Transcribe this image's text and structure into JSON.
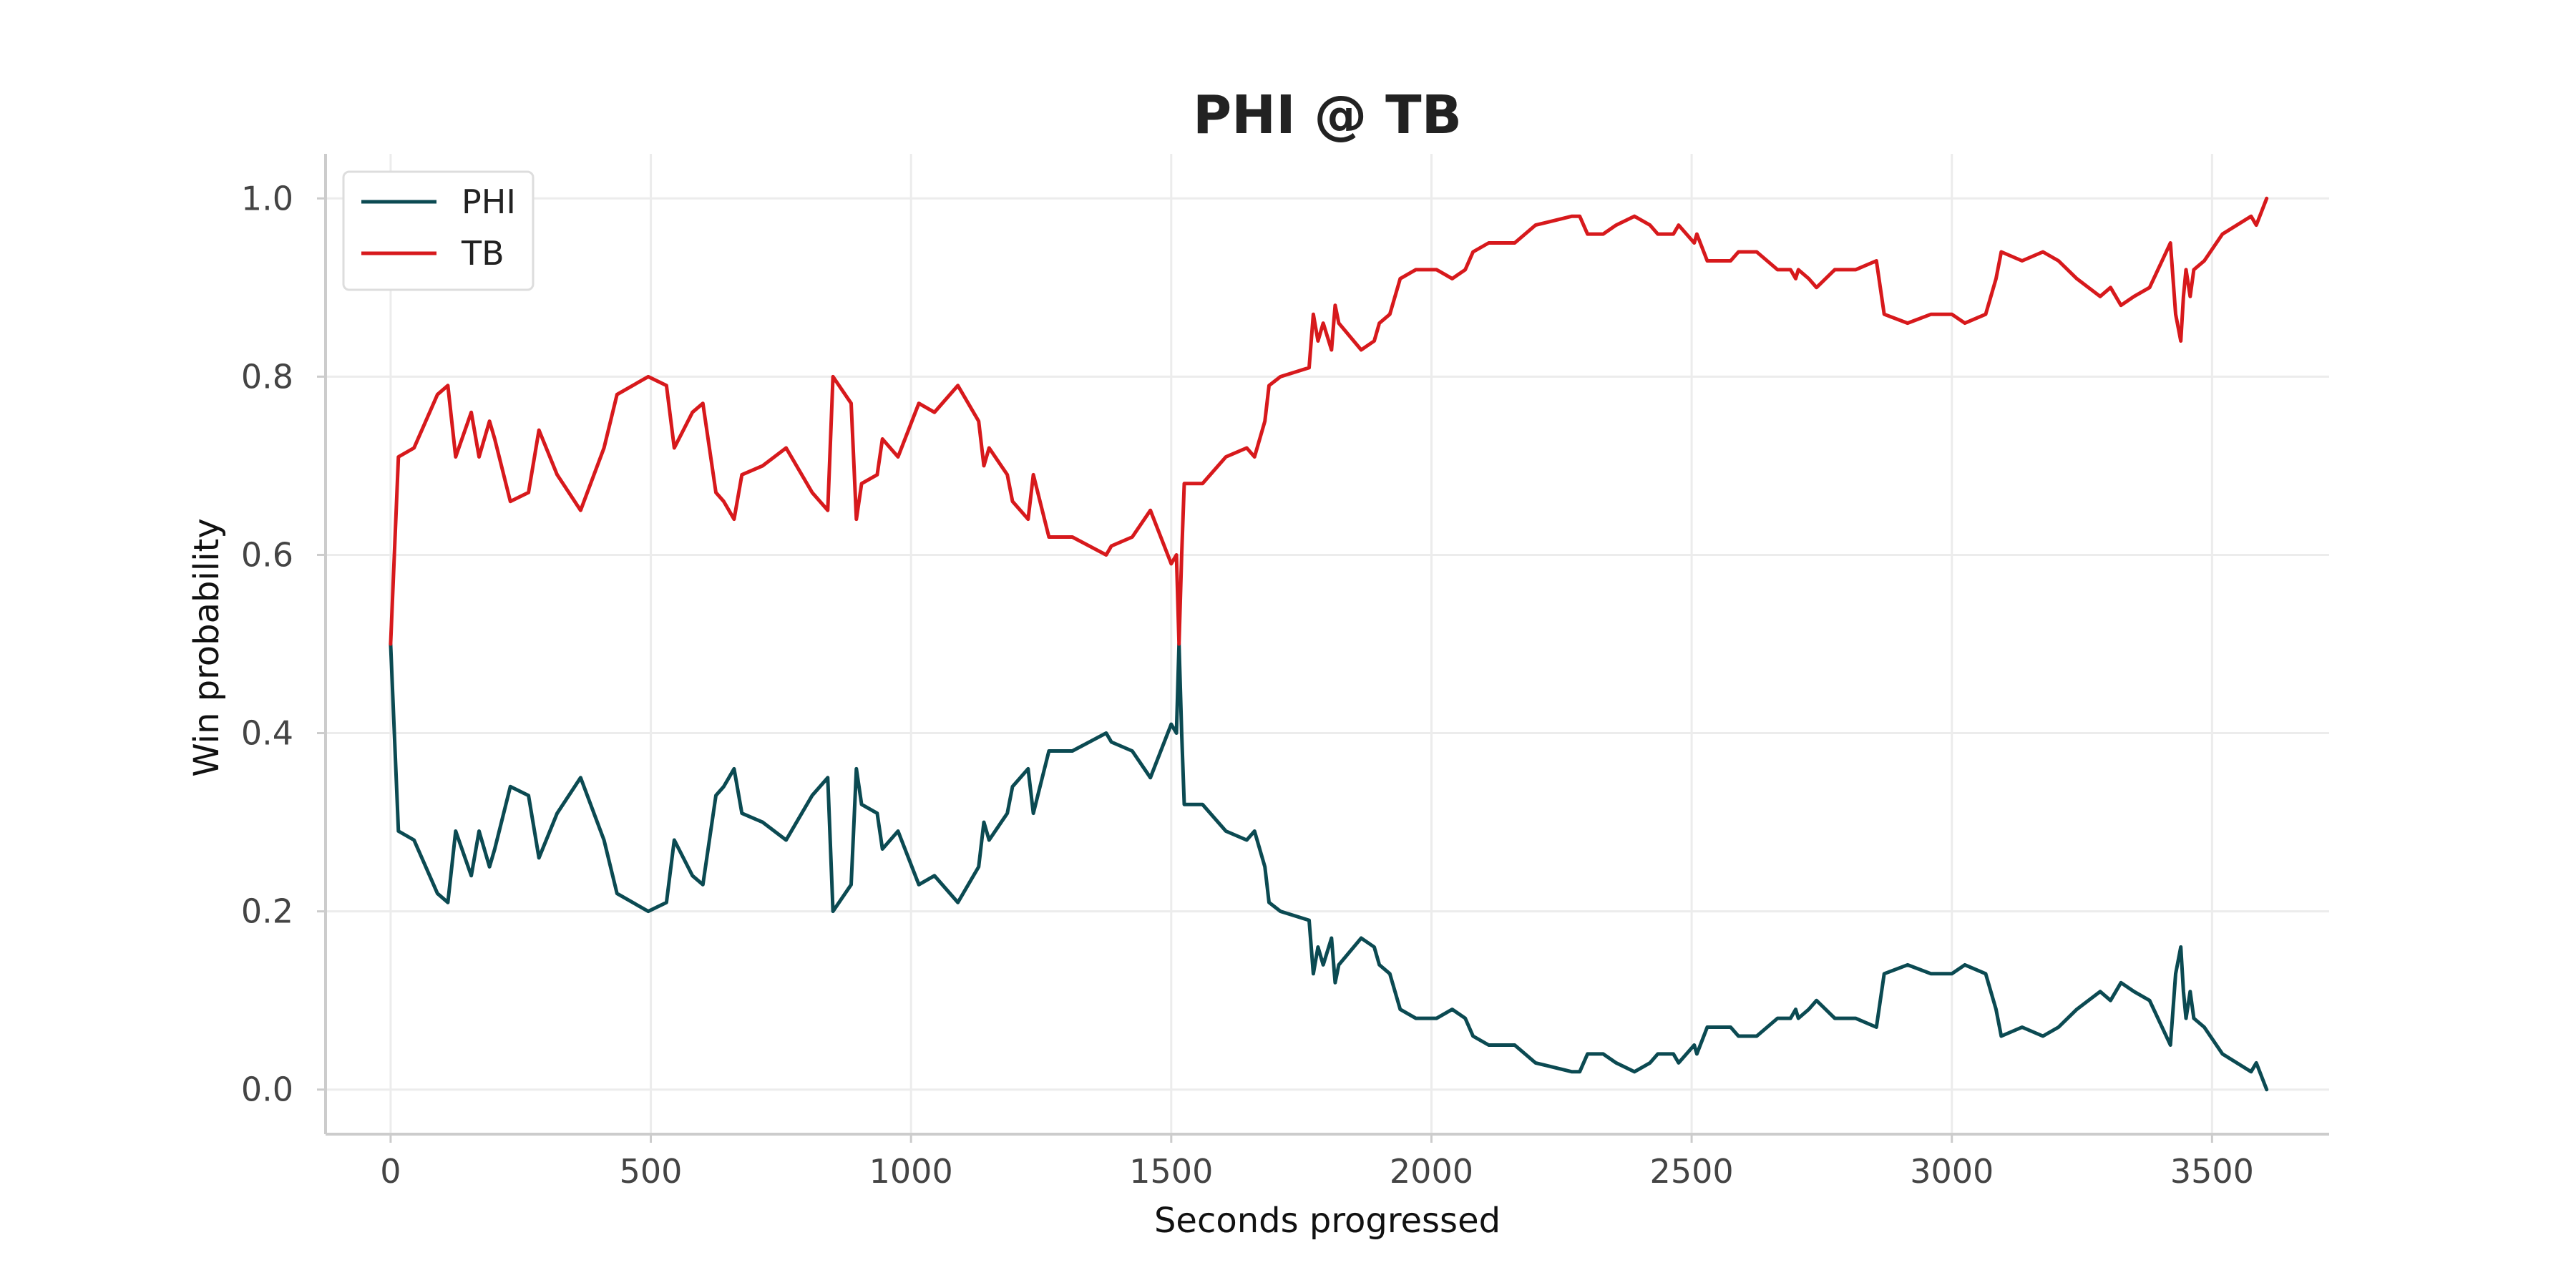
{
  "chart_data": {
    "type": "line",
    "title": "PHI @ TB",
    "xlabel": "Seconds progressed",
    "ylabel": "Win probability",
    "xlim": [
      -125,
      3725
    ],
    "ylim": [
      -0.05,
      1.05
    ],
    "xticks": [
      0,
      500,
      1000,
      1500,
      2000,
      2500,
      3000,
      3500
    ],
    "yticks": [
      0.0,
      0.2,
      0.4,
      0.6,
      0.8,
      1.0
    ],
    "xtick_labels": [
      "0",
      "500",
      "1000",
      "1500",
      "2000",
      "2500",
      "3000",
      "3500"
    ],
    "ytick_labels": [
      "0.0",
      "0.2",
      "0.4",
      "0.6",
      "0.8",
      "1.0"
    ],
    "grid": true,
    "legend": "top-left",
    "series": [
      {
        "name": "PHI",
        "color": "#0b4a52",
        "points": [
          [
            0,
            0.5
          ],
          [
            15,
            0.29
          ],
          [
            45,
            0.28
          ],
          [
            90,
            0.22
          ],
          [
            110,
            0.21
          ],
          [
            125,
            0.29
          ],
          [
            155,
            0.24
          ],
          [
            170,
            0.29
          ],
          [
            190,
            0.25
          ],
          [
            200,
            0.27
          ],
          [
            230,
            0.34
          ],
          [
            265,
            0.33
          ],
          [
            285,
            0.26
          ],
          [
            320,
            0.31
          ],
          [
            365,
            0.35
          ],
          [
            410,
            0.28
          ],
          [
            435,
            0.22
          ],
          [
            495,
            0.2
          ],
          [
            530,
            0.21
          ],
          [
            545,
            0.28
          ],
          [
            580,
            0.24
          ],
          [
            600,
            0.23
          ],
          [
            625,
            0.33
          ],
          [
            640,
            0.34
          ],
          [
            660,
            0.36
          ],
          [
            675,
            0.31
          ],
          [
            715,
            0.3
          ],
          [
            760,
            0.28
          ],
          [
            810,
            0.33
          ],
          [
            840,
            0.35
          ],
          [
            850,
            0.2
          ],
          [
            885,
            0.23
          ],
          [
            895,
            0.36
          ],
          [
            905,
            0.32
          ],
          [
            935,
            0.31
          ],
          [
            945,
            0.27
          ],
          [
            975,
            0.29
          ],
          [
            1015,
            0.23
          ],
          [
            1045,
            0.24
          ],
          [
            1090,
            0.21
          ],
          [
            1100,
            0.22
          ],
          [
            1130,
            0.25
          ],
          [
            1140,
            0.3
          ],
          [
            1150,
            0.28
          ],
          [
            1185,
            0.31
          ],
          [
            1195,
            0.34
          ],
          [
            1225,
            0.36
          ],
          [
            1235,
            0.31
          ],
          [
            1265,
            0.38
          ],
          [
            1310,
            0.38
          ],
          [
            1375,
            0.4
          ],
          [
            1385,
            0.39
          ],
          [
            1425,
            0.38
          ],
          [
            1460,
            0.35
          ],
          [
            1500,
            0.41
          ],
          [
            1510,
            0.4
          ],
          [
            1515,
            0.5
          ],
          [
            1520,
            0.4
          ],
          [
            1525,
            0.32
          ],
          [
            1560,
            0.32
          ],
          [
            1605,
            0.29
          ],
          [
            1645,
            0.28
          ],
          [
            1660,
            0.29
          ],
          [
            1680,
            0.25
          ],
          [
            1688,
            0.21
          ],
          [
            1710,
            0.2
          ],
          [
            1765,
            0.19
          ],
          [
            1773,
            0.13
          ],
          [
            1782,
            0.16
          ],
          [
            1792,
            0.14
          ],
          [
            1808,
            0.17
          ],
          [
            1815,
            0.12
          ],
          [
            1822,
            0.14
          ],
          [
            1865,
            0.17
          ],
          [
            1890,
            0.16
          ],
          [
            1900,
            0.14
          ],
          [
            1920,
            0.13
          ],
          [
            1940,
            0.09
          ],
          [
            1970,
            0.08
          ],
          [
            2010,
            0.08
          ],
          [
            2040,
            0.09
          ],
          [
            2065,
            0.08
          ],
          [
            2080,
            0.06
          ],
          [
            2110,
            0.05
          ],
          [
            2160,
            0.05
          ],
          [
            2200,
            0.03
          ],
          [
            2270,
            0.02
          ],
          [
            2285,
            0.02
          ],
          [
            2300,
            0.04
          ],
          [
            2330,
            0.04
          ],
          [
            2355,
            0.03
          ],
          [
            2390,
            0.02
          ],
          [
            2420,
            0.03
          ],
          [
            2435,
            0.04
          ],
          [
            2465,
            0.04
          ],
          [
            2475,
            0.03
          ],
          [
            2505,
            0.05
          ],
          [
            2510,
            0.04
          ],
          [
            2530,
            0.07
          ],
          [
            2550,
            0.07
          ],
          [
            2575,
            0.07
          ],
          [
            2590,
            0.06
          ],
          [
            2625,
            0.06
          ],
          [
            2665,
            0.08
          ],
          [
            2690,
            0.08
          ],
          [
            2700,
            0.09
          ],
          [
            2705,
            0.08
          ],
          [
            2725,
            0.09
          ],
          [
            2740,
            0.1
          ],
          [
            2775,
            0.08
          ],
          [
            2815,
            0.08
          ],
          [
            2855,
            0.07
          ],
          [
            2870,
            0.13
          ],
          [
            2915,
            0.14
          ],
          [
            2960,
            0.13
          ],
          [
            3000,
            0.13
          ],
          [
            3025,
            0.14
          ],
          [
            3065,
            0.13
          ],
          [
            3085,
            0.09
          ],
          [
            3095,
            0.06
          ],
          [
            3135,
            0.07
          ],
          [
            3175,
            0.06
          ],
          [
            3205,
            0.07
          ],
          [
            3240,
            0.09
          ],
          [
            3285,
            0.11
          ],
          [
            3305,
            0.1
          ],
          [
            3325,
            0.12
          ],
          [
            3350,
            0.11
          ],
          [
            3380,
            0.1
          ],
          [
            3420,
            0.05
          ],
          [
            3430,
            0.13
          ],
          [
            3440,
            0.16
          ],
          [
            3445,
            0.11
          ],
          [
            3450,
            0.08
          ],
          [
            3458,
            0.11
          ],
          [
            3465,
            0.08
          ],
          [
            3485,
            0.07
          ],
          [
            3520,
            0.04
          ],
          [
            3575,
            0.02
          ],
          [
            3585,
            0.03
          ],
          [
            3605,
            0.0
          ]
        ]
      },
      {
        "name": "TB",
        "color": "#d7191c",
        "points": [
          [
            0,
            0.5
          ],
          [
            15,
            0.71
          ],
          [
            45,
            0.72
          ],
          [
            90,
            0.78
          ],
          [
            110,
            0.79
          ],
          [
            125,
            0.71
          ],
          [
            155,
            0.76
          ],
          [
            170,
            0.71
          ],
          [
            190,
            0.75
          ],
          [
            200,
            0.73
          ],
          [
            230,
            0.66
          ],
          [
            265,
            0.67
          ],
          [
            285,
            0.74
          ],
          [
            320,
            0.69
          ],
          [
            365,
            0.65
          ],
          [
            410,
            0.72
          ],
          [
            435,
            0.78
          ],
          [
            495,
            0.8
          ],
          [
            530,
            0.79
          ],
          [
            545,
            0.72
          ],
          [
            580,
            0.76
          ],
          [
            600,
            0.77
          ],
          [
            625,
            0.67
          ],
          [
            640,
            0.66
          ],
          [
            660,
            0.64
          ],
          [
            675,
            0.69
          ],
          [
            715,
            0.7
          ],
          [
            760,
            0.72
          ],
          [
            810,
            0.67
          ],
          [
            840,
            0.65
          ],
          [
            850,
            0.8
          ],
          [
            885,
            0.77
          ],
          [
            895,
            0.64
          ],
          [
            905,
            0.68
          ],
          [
            935,
            0.69
          ],
          [
            945,
            0.73
          ],
          [
            975,
            0.71
          ],
          [
            1015,
            0.77
          ],
          [
            1045,
            0.76
          ],
          [
            1090,
            0.79
          ],
          [
            1100,
            0.78
          ],
          [
            1130,
            0.75
          ],
          [
            1140,
            0.7
          ],
          [
            1150,
            0.72
          ],
          [
            1185,
            0.69
          ],
          [
            1195,
            0.66
          ],
          [
            1225,
            0.64
          ],
          [
            1235,
            0.69
          ],
          [
            1265,
            0.62
          ],
          [
            1310,
            0.62
          ],
          [
            1375,
            0.6
          ],
          [
            1385,
            0.61
          ],
          [
            1425,
            0.62
          ],
          [
            1460,
            0.65
          ],
          [
            1500,
            0.59
          ],
          [
            1510,
            0.6
          ],
          [
            1515,
            0.5
          ],
          [
            1520,
            0.6
          ],
          [
            1525,
            0.68
          ],
          [
            1560,
            0.68
          ],
          [
            1605,
            0.71
          ],
          [
            1645,
            0.72
          ],
          [
            1660,
            0.71
          ],
          [
            1680,
            0.75
          ],
          [
            1688,
            0.79
          ],
          [
            1710,
            0.8
          ],
          [
            1765,
            0.81
          ],
          [
            1773,
            0.87
          ],
          [
            1782,
            0.84
          ],
          [
            1792,
            0.86
          ],
          [
            1808,
            0.83
          ],
          [
            1815,
            0.88
          ],
          [
            1822,
            0.86
          ],
          [
            1865,
            0.83
          ],
          [
            1890,
            0.84
          ],
          [
            1900,
            0.86
          ],
          [
            1920,
            0.87
          ],
          [
            1940,
            0.91
          ],
          [
            1970,
            0.92
          ],
          [
            2010,
            0.92
          ],
          [
            2040,
            0.91
          ],
          [
            2065,
            0.92
          ],
          [
            2080,
            0.94
          ],
          [
            2110,
            0.95
          ],
          [
            2160,
            0.95
          ],
          [
            2200,
            0.97
          ],
          [
            2270,
            0.98
          ],
          [
            2285,
            0.98
          ],
          [
            2300,
            0.96
          ],
          [
            2330,
            0.96
          ],
          [
            2355,
            0.97
          ],
          [
            2390,
            0.98
          ],
          [
            2420,
            0.97
          ],
          [
            2435,
            0.96
          ],
          [
            2465,
            0.96
          ],
          [
            2475,
            0.97
          ],
          [
            2505,
            0.95
          ],
          [
            2510,
            0.96
          ],
          [
            2530,
            0.93
          ],
          [
            2550,
            0.93
          ],
          [
            2575,
            0.93
          ],
          [
            2590,
            0.94
          ],
          [
            2625,
            0.94
          ],
          [
            2665,
            0.92
          ],
          [
            2690,
            0.92
          ],
          [
            2700,
            0.91
          ],
          [
            2705,
            0.92
          ],
          [
            2725,
            0.91
          ],
          [
            2740,
            0.9
          ],
          [
            2775,
            0.92
          ],
          [
            2815,
            0.92
          ],
          [
            2855,
            0.93
          ],
          [
            2870,
            0.87
          ],
          [
            2915,
            0.86
          ],
          [
            2960,
            0.87
          ],
          [
            3000,
            0.87
          ],
          [
            3025,
            0.86
          ],
          [
            3065,
            0.87
          ],
          [
            3085,
            0.91
          ],
          [
            3095,
            0.94
          ],
          [
            3135,
            0.93
          ],
          [
            3175,
            0.94
          ],
          [
            3205,
            0.93
          ],
          [
            3240,
            0.91
          ],
          [
            3285,
            0.89
          ],
          [
            3305,
            0.9
          ],
          [
            3325,
            0.88
          ],
          [
            3350,
            0.89
          ],
          [
            3380,
            0.9
          ],
          [
            3420,
            0.95
          ],
          [
            3430,
            0.87
          ],
          [
            3440,
            0.84
          ],
          [
            3445,
            0.89
          ],
          [
            3450,
            0.92
          ],
          [
            3458,
            0.89
          ],
          [
            3465,
            0.92
          ],
          [
            3485,
            0.93
          ],
          [
            3520,
            0.96
          ],
          [
            3575,
            0.98
          ],
          [
            3585,
            0.97
          ],
          [
            3605,
            1.0
          ]
        ]
      }
    ]
  }
}
